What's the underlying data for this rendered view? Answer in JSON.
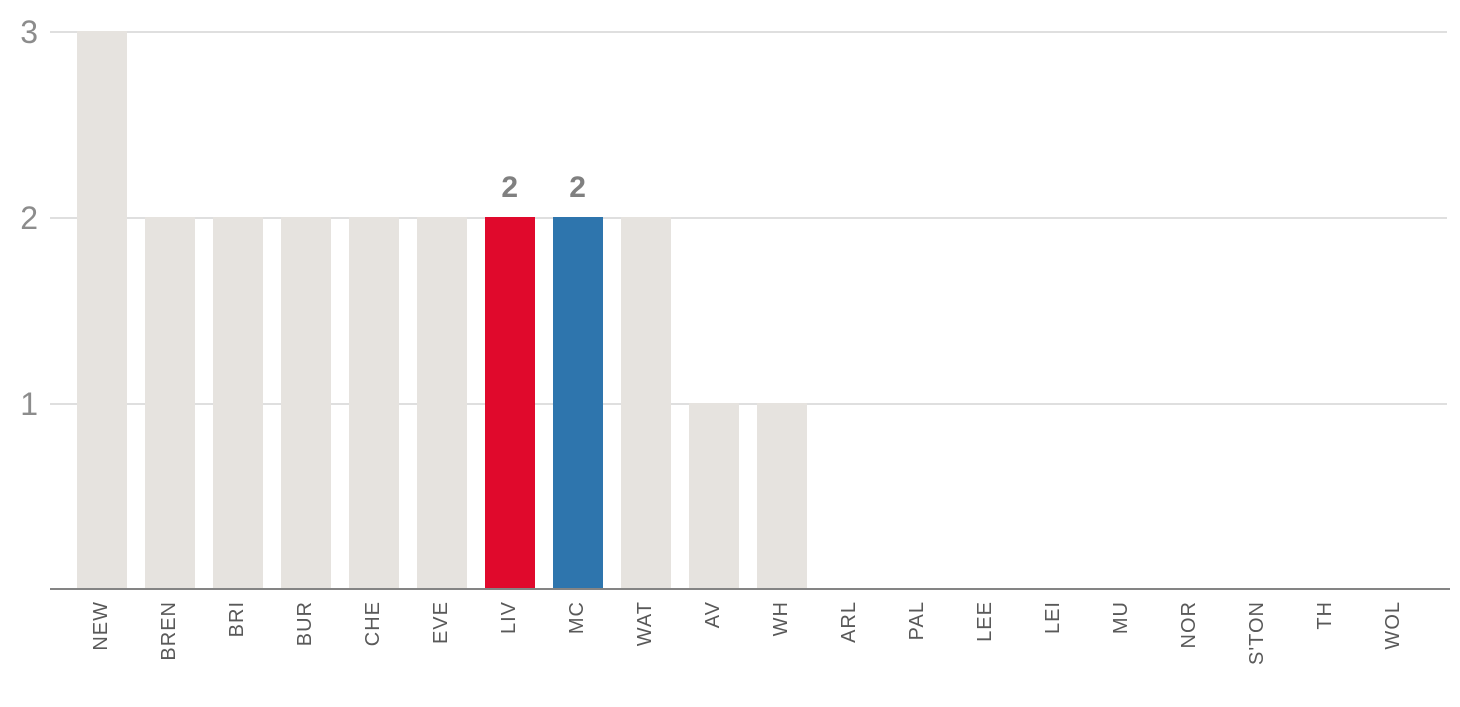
{
  "chart_data": {
    "type": "bar",
    "title": "",
    "xlabel": "",
    "ylabel": "",
    "ylim": [
      0,
      3
    ],
    "yticks": [
      1,
      2,
      3
    ],
    "grid": true,
    "legend": false,
    "categories": [
      "NEW",
      "BREN",
      "BRI",
      "BUR",
      "CHE",
      "EVE",
      "LIV",
      "MC",
      "WAT",
      "AV",
      "WH",
      "ARL",
      "PAL",
      "LEE",
      "LEI",
      "MU",
      "NOR",
      "S'TON",
      "TH",
      "WOL"
    ],
    "values": [
      3,
      2,
      2,
      2,
      2,
      2,
      2,
      2,
      2,
      1,
      1,
      0,
      0,
      0,
      0,
      0,
      0,
      0,
      0,
      0
    ],
    "data_labels": {
      "LIV": "2",
      "MC": "2"
    },
    "highlights": {
      "LIV": "#e0092c",
      "MC": "#2e75ad"
    }
  },
  "colors": {
    "bar_default": "#e6e3df",
    "bar_liv_highlight": "#e0092c",
    "bar_mc_highlight": "#2e75ad",
    "gridline": "#dfdfdf",
    "axis_line": "#848484",
    "y_tick_label": "#8c8c8c",
    "x_tick_label": "#595959",
    "data_label": "#808080"
  }
}
